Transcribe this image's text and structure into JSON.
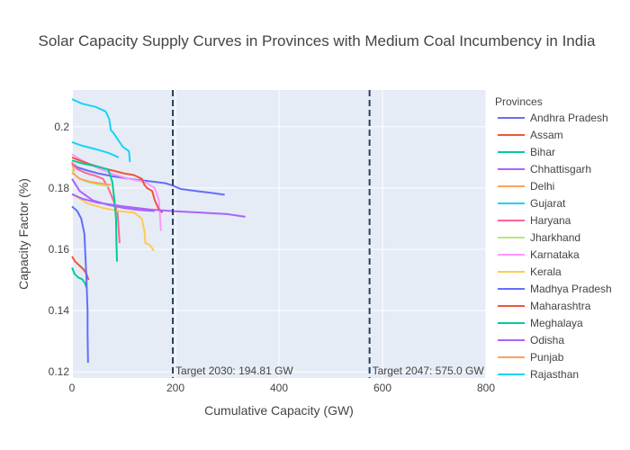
{
  "chart_data": {
    "type": "line",
    "title": "Solar Capacity Supply Curves in Provinces with Medium Coal Incumbency in India",
    "xlabel": "Cumulative Capacity (GW)",
    "ylabel": "Capacity Factor (%)",
    "xlim": [
      0,
      800
    ],
    "ylim": [
      0.118,
      0.212
    ],
    "xticks": [
      0,
      200,
      400,
      600,
      800
    ],
    "yticks": [
      0.12,
      0.14,
      0.16,
      0.18,
      0.2
    ],
    "grid": true,
    "legend_title": "Provinces",
    "legend_position": "right",
    "targets": [
      {
        "x": 194.81,
        "label": "Target 2030: 194.81 GW"
      },
      {
        "x": 575.0,
        "label": "Target 2047: 575.0 GW"
      }
    ],
    "series": [
      {
        "name": "Andhra Pradesh",
        "color": "#636efa",
        "points": [
          [
            0,
            0.188
          ],
          [
            10,
            0.1868
          ],
          [
            30,
            0.1857
          ],
          [
            50,
            0.1848
          ],
          [
            80,
            0.1838
          ],
          [
            120,
            0.1828
          ],
          [
            150,
            0.1822
          ],
          [
            180,
            0.1816
          ],
          [
            195,
            0.1808
          ],
          [
            210,
            0.1797
          ],
          [
            240,
            0.179
          ],
          [
            270,
            0.1784
          ],
          [
            295,
            0.1778
          ]
        ]
      },
      {
        "name": "Assam",
        "color": "#EF553B",
        "points": [
          [
            0,
            0.1577
          ],
          [
            6,
            0.156
          ],
          [
            14,
            0.1548
          ],
          [
            22,
            0.1535
          ],
          [
            28,
            0.152
          ],
          [
            32,
            0.15
          ]
        ]
      },
      {
        "name": "Bihar",
        "color": "#00cc96",
        "points": [
          [
            0,
            0.154
          ],
          [
            5,
            0.152
          ],
          [
            12,
            0.1508
          ],
          [
            20,
            0.1502
          ],
          [
            25,
            0.149
          ],
          [
            28,
            0.1475
          ]
        ]
      },
      {
        "name": "Chhattisgarh",
        "color": "#ab63fa",
        "points": [
          [
            0,
            0.183
          ],
          [
            15,
            0.179
          ],
          [
            40,
            0.176
          ],
          [
            70,
            0.1745
          ],
          [
            100,
            0.1735
          ],
          [
            130,
            0.1728
          ],
          [
            160,
            0.1725
          ]
        ]
      },
      {
        "name": "Delhi",
        "color": "#FFA15A",
        "points": [
          [
            0,
            0.1885
          ],
          [
            2,
            0.187
          ],
          [
            4,
            0.1855
          ]
        ]
      },
      {
        "name": "Gujarat",
        "color": "#19d3f3",
        "points": [
          [
            0,
            0.209
          ],
          [
            20,
            0.2075
          ],
          [
            45,
            0.2065
          ],
          [
            65,
            0.205
          ],
          [
            72,
            0.2025
          ],
          [
            75,
            0.199
          ],
          [
            80,
            0.198
          ],
          [
            90,
            0.1955
          ],
          [
            98,
            0.1935
          ],
          [
            110,
            0.192
          ],
          [
            112,
            0.1885
          ]
        ]
      },
      {
        "name": "Haryana",
        "color": "#FF6692",
        "points": [
          [
            0,
            0.188
          ],
          [
            10,
            0.1862
          ],
          [
            25,
            0.185
          ],
          [
            45,
            0.184
          ],
          [
            60,
            0.183
          ],
          [
            70,
            0.18
          ],
          [
            80,
            0.176
          ],
          [
            88,
            0.172
          ],
          [
            92,
            0.162
          ]
        ]
      },
      {
        "name": "Jharkhand",
        "color": "#B6E880",
        "points": [
          [
            0,
            0.186
          ],
          [
            5,
            0.1845
          ],
          [
            15,
            0.183
          ],
          [
            30,
            0.182
          ],
          [
            50,
            0.1812
          ],
          [
            70,
            0.1805
          ]
        ]
      },
      {
        "name": "Karnataka",
        "color": "#FF97FF",
        "points": [
          [
            0,
            0.191
          ],
          [
            20,
            0.189
          ],
          [
            50,
            0.1865
          ],
          [
            80,
            0.1845
          ],
          [
            110,
            0.183
          ],
          [
            140,
            0.182
          ],
          [
            160,
            0.18
          ],
          [
            168,
            0.176
          ],
          [
            172,
            0.166
          ]
        ]
      },
      {
        "name": "Kerala",
        "color": "#FECB52",
        "points": [
          [
            0,
            0.178
          ],
          [
            10,
            0.177
          ],
          [
            30,
            0.175
          ],
          [
            60,
            0.1735
          ],
          [
            90,
            0.1725
          ],
          [
            120,
            0.172
          ],
          [
            135,
            0.17
          ],
          [
            140,
            0.166
          ],
          [
            142,
            0.162
          ],
          [
            150,
            0.1615
          ],
          [
            158,
            0.1595
          ]
        ]
      },
      {
        "name": "Madhya Pradesh",
        "color": "#636efa",
        "points": [
          [
            0,
            0.174
          ],
          [
            10,
            0.1725
          ],
          [
            18,
            0.17
          ],
          [
            24,
            0.165
          ],
          [
            28,
            0.15
          ],
          [
            30,
            0.14
          ],
          [
            30,
            0.133
          ],
          [
            31,
            0.123
          ]
        ]
      },
      {
        "name": "Maharashtra",
        "color": "#EF553B",
        "points": [
          [
            0,
            0.19
          ],
          [
            30,
            0.188
          ],
          [
            60,
            0.1865
          ],
          [
            100,
            0.1848
          ],
          [
            120,
            0.1842
          ],
          [
            135,
            0.183
          ],
          [
            140,
            0.181
          ],
          [
            145,
            0.18
          ],
          [
            155,
            0.179
          ],
          [
            160,
            0.176
          ],
          [
            168,
            0.173
          ],
          [
            175,
            0.172
          ]
        ]
      },
      {
        "name": "Meghalaya",
        "color": "#00cc96",
        "points": [
          [
            0,
            0.189
          ],
          [
            20,
            0.188
          ],
          [
            50,
            0.187
          ],
          [
            70,
            0.186
          ],
          [
            78,
            0.182
          ],
          [
            82,
            0.176
          ],
          [
            85,
            0.17
          ],
          [
            86,
            0.162
          ],
          [
            87,
            0.156
          ]
        ]
      },
      {
        "name": "Odisha",
        "color": "#ab63fa",
        "points": [
          [
            0,
            0.178
          ],
          [
            20,
            0.1765
          ],
          [
            50,
            0.1752
          ],
          [
            100,
            0.174
          ],
          [
            150,
            0.173
          ],
          [
            200,
            0.1724
          ],
          [
            250,
            0.172
          ],
          [
            300,
            0.1715
          ],
          [
            335,
            0.1706
          ]
        ]
      },
      {
        "name": "Punjab",
        "color": "#FFA15A",
        "points": [
          [
            0,
            0.185
          ],
          [
            15,
            0.183
          ],
          [
            35,
            0.182
          ],
          [
            55,
            0.1815
          ],
          [
            75,
            0.181
          ]
        ]
      },
      {
        "name": "Rajasthan",
        "color": "#19d3f3",
        "points": [
          [
            0,
            0.195
          ],
          [
            20,
            0.1938
          ],
          [
            50,
            0.1925
          ],
          [
            70,
            0.1915
          ],
          [
            90,
            0.19
          ]
        ]
      }
    ]
  }
}
